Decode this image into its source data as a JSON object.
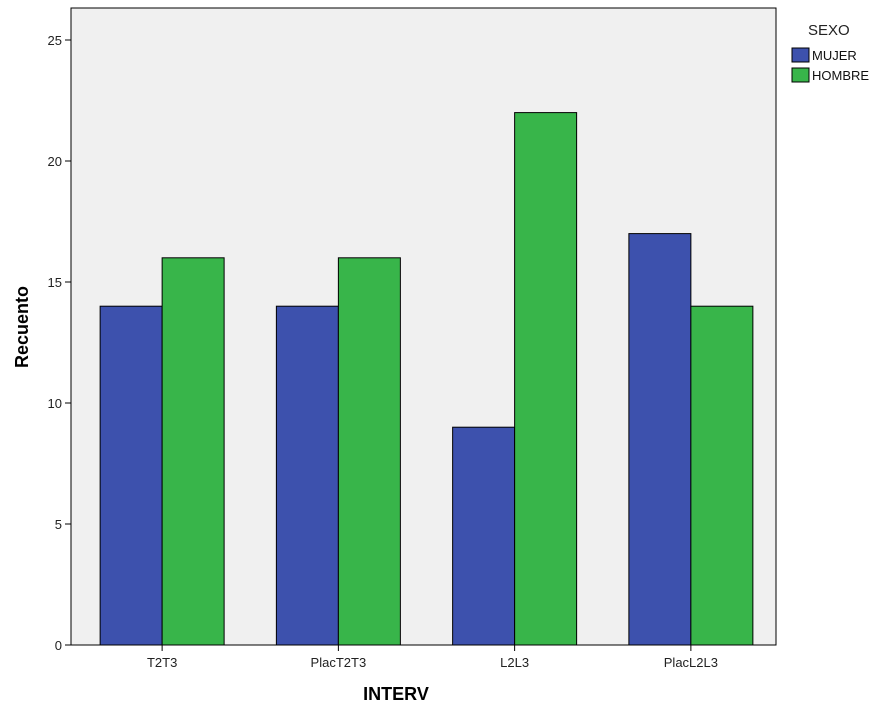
{
  "chart_data": {
    "type": "bar",
    "categories": [
      "T2T3",
      "PlacT2T3",
      "L2L3",
      "PlacL2L3"
    ],
    "series": [
      {
        "name": "MUJER",
        "values": [
          14,
          14,
          9,
          17
        ],
        "color": "#3d51ad"
      },
      {
        "name": "HOMBRE",
        "values": [
          16,
          16,
          22,
          14
        ],
        "color": "#38b54a"
      }
    ],
    "xlabel": "INTERV",
    "ylabel": "Recuento",
    "ylim": [
      0,
      26
    ],
    "yticks": [
      0,
      5,
      10,
      15,
      20,
      25
    ],
    "grid": false,
    "legend": {
      "title": "SEXO",
      "placement": "top-right"
    },
    "plot_background": "#f0f0f0"
  }
}
